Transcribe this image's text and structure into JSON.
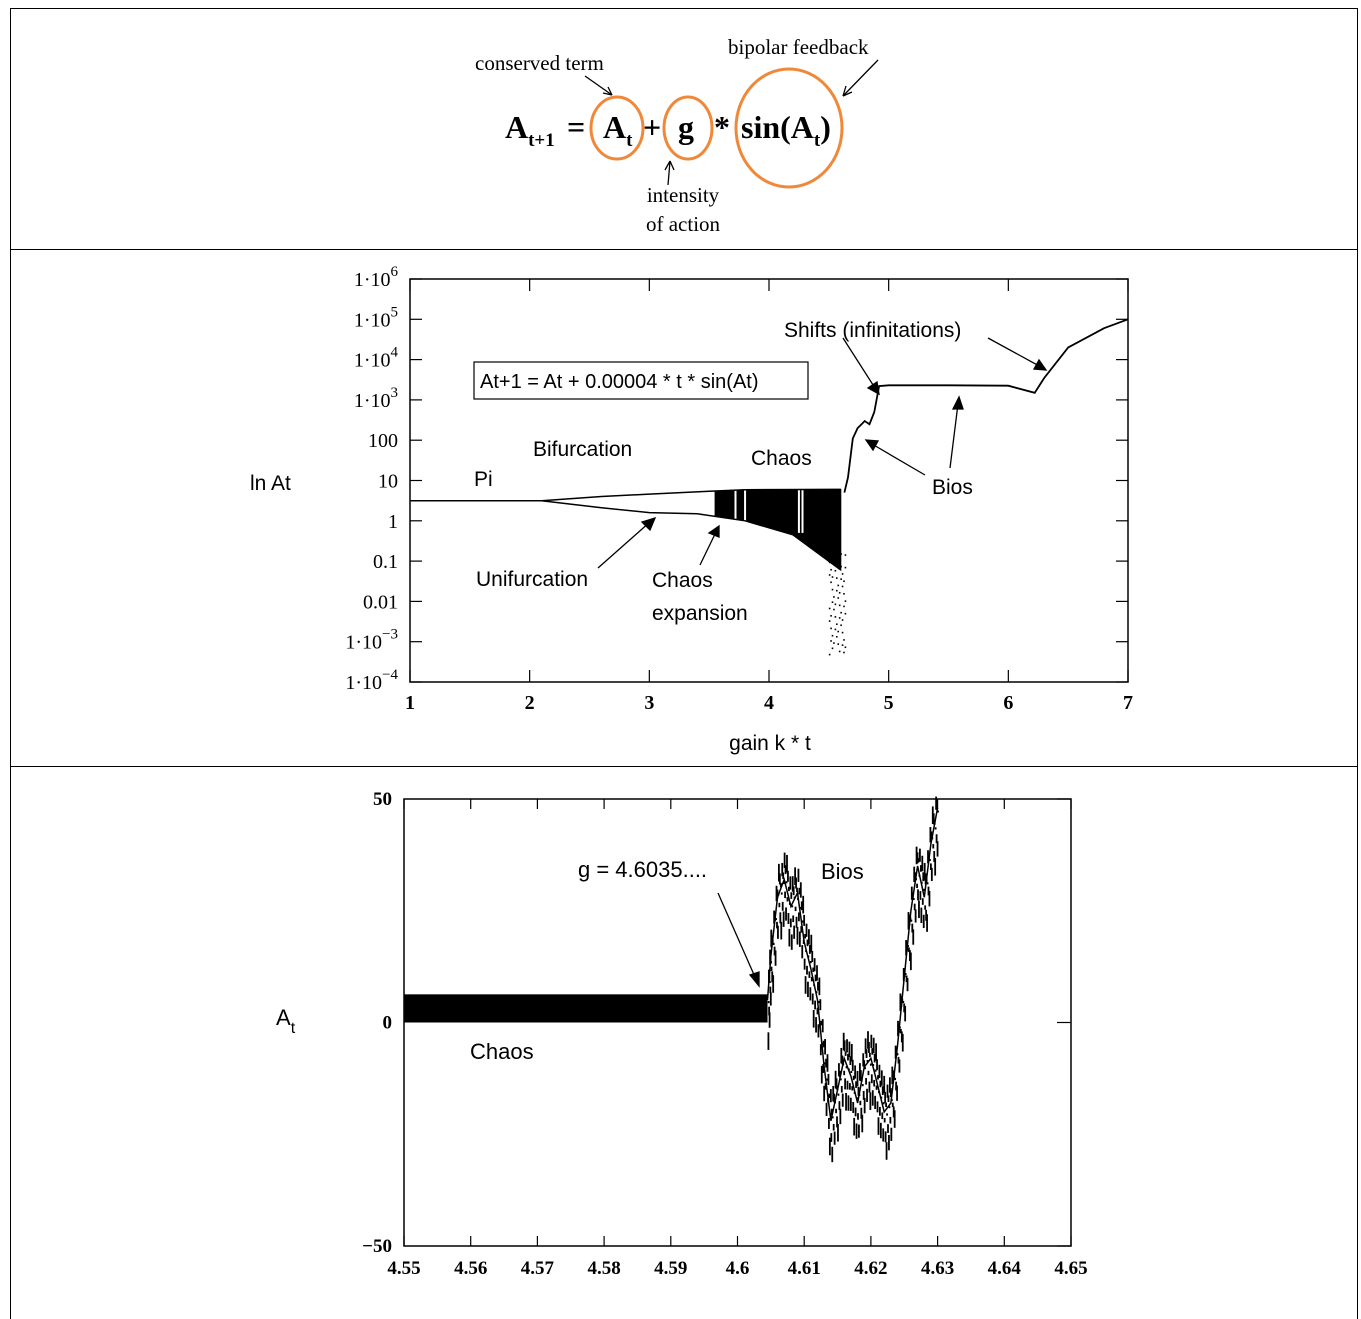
{
  "equation": {
    "lhs_base": "A",
    "lhs_sub": "t+1",
    "equals": "=",
    "term1_base": "A",
    "term1_sub": "t",
    "plus": "+",
    "g": "g",
    "times": "*",
    "sin_open": "sin(A",
    "sin_sub": "t",
    "sin_close": ")",
    "label_conserved": "conserved term",
    "label_bipolar": "bipolar feedback",
    "label_intensity_1": "intensity",
    "label_intensity_2": "of action",
    "circle_color": "#f0883a"
  },
  "chart_data": [
    {
      "type": "scatter",
      "title": "",
      "xlabel": "gain k * t",
      "ylabel": "ln At",
      "xlim": [
        1,
        7
      ],
      "ylim_log10": [
        -4,
        6
      ],
      "yscale": "log",
      "x_ticks": [
        "1",
        "2",
        "3",
        "4",
        "5",
        "6",
        "7"
      ],
      "y_ticks": [
        {
          "base": "1·10",
          "exp": "6"
        },
        {
          "base": "1·10",
          "exp": "5"
        },
        {
          "base": "1·10",
          "exp": "4"
        },
        {
          "base": "1·10",
          "exp": "3"
        },
        {
          "base": "100",
          "exp": ""
        },
        {
          "base": "10",
          "exp": ""
        },
        {
          "base": "1",
          "exp": ""
        },
        {
          "base": "0.1",
          "exp": ""
        },
        {
          "base": "0.01",
          "exp": ""
        },
        {
          "base": "1·10",
          "exp": "−3"
        },
        {
          "base": "1·10",
          "exp": "−4"
        }
      ],
      "equation_box": "At+1 = At + 0.00004 * t * sin(At)",
      "annotations": {
        "pi": "Pi",
        "bifurcation": "Bifurcation",
        "chaos": "Chaos",
        "unifurcation": "Unifurcation",
        "chaos_expansion_1": "Chaos",
        "chaos_expansion_2": "expansion",
        "shifts": "Shifts (infinitations)",
        "bios": "Bios"
      },
      "series": [
        {
          "branch_upper": [
            [
              1.0,
              3.14
            ],
            [
              2.1,
              3.14
            ],
            [
              2.6,
              4.0
            ],
            [
              3.0,
              4.6
            ],
            [
              3.5,
              5.4
            ],
            [
              3.8,
              5.9
            ],
            [
              4.6,
              6.0
            ]
          ],
          "branch_lower": [
            [
              2.1,
              3.14
            ],
            [
              2.6,
              2.1
            ],
            [
              3.0,
              1.6
            ],
            [
              3.4,
              1.5
            ],
            [
              3.8,
              1.0
            ],
            [
              4.2,
              0.45
            ],
            [
              4.6,
              0.06
            ]
          ],
          "jump_path": [
            [
              4.63,
              5
            ],
            [
              4.66,
              12
            ],
            [
              4.7,
              110
            ],
            [
              4.74,
              200
            ],
            [
              4.78,
              260
            ],
            [
              4.8,
              300
            ],
            [
              4.84,
              250
            ],
            [
              4.88,
              500
            ],
            [
              4.92,
              2200
            ],
            [
              5.0,
              2300
            ],
            [
              5.5,
              2300
            ],
            [
              6.0,
              2250
            ],
            [
              6.22,
              1500
            ],
            [
              6.3,
              3500
            ],
            [
              6.5,
              20000
            ],
            [
              6.8,
              60000
            ],
            [
              7.0,
              100000
            ]
          ]
        }
      ]
    },
    {
      "type": "scatter",
      "title": "",
      "xlabel": "",
      "ylabel": "At",
      "xlim": [
        4.55,
        4.65
      ],
      "ylim": [
        -50,
        50
      ],
      "x_ticks": [
        "4.55",
        "4.56",
        "4.57",
        "4.58",
        "4.59",
        "4.6",
        "4.61",
        "4.62",
        "4.63",
        "4.64",
        "4.65"
      ],
      "y_ticks": [
        "50",
        "0",
        "−50"
      ],
      "annotations": {
        "g_value": "g = 4.6035....",
        "bios": "Bios",
        "chaos": "Chaos"
      },
      "chaos_band": {
        "x_range": [
          4.55,
          4.6045
        ],
        "y_range": [
          0,
          6.3
        ]
      },
      "bios_walk": [
        [
          4.6045,
          5
        ],
        [
          4.605,
          15
        ],
        [
          4.606,
          28
        ],
        [
          4.607,
          32
        ],
        [
          4.608,
          26
        ],
        [
          4.609,
          29
        ],
        [
          4.61,
          18
        ],
        [
          4.611,
          12
        ],
        [
          4.612,
          5
        ],
        [
          4.613,
          -10
        ],
        [
          4.614,
          -22
        ],
        [
          4.615,
          -15
        ],
        [
          4.616,
          -8
        ],
        [
          4.617,
          -12
        ],
        [
          4.618,
          -18
        ],
        [
          4.619,
          -10
        ],
        [
          4.62,
          -8
        ],
        [
          4.621,
          -14
        ],
        [
          4.622,
          -20
        ],
        [
          4.623,
          -18
        ],
        [
          4.624,
          -5
        ],
        [
          4.625,
          10
        ],
        [
          4.626,
          25
        ],
        [
          4.627,
          35
        ],
        [
          4.628,
          28
        ],
        [
          4.629,
          40
        ],
        [
          4.63,
          48
        ]
      ]
    }
  ]
}
